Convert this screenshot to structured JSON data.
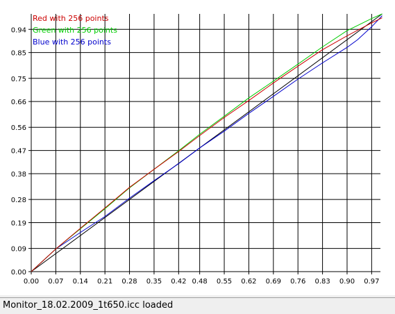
{
  "chart_data": {
    "type": "line",
    "xlim": [
      0,
      0.995
    ],
    "ylim": [
      0,
      1.0
    ],
    "x_ticks": [
      "0.00",
      "0.07",
      "0.14",
      "0.21",
      "0.28",
      "0.35",
      "0.42",
      "0.48",
      "0.55",
      "0.62",
      "0.69",
      "0.76",
      "0.83",
      "0.90",
      "0.97"
    ],
    "y_ticks": [
      "0.00",
      "0.09",
      "0.19",
      "0.28",
      "0.38",
      "0.47",
      "0.56",
      "0.66",
      "0.75",
      "0.85",
      "0.94"
    ],
    "grid": true,
    "legend_position": "top-left",
    "series": [
      {
        "name": "Red with 256 points",
        "color": "#cc0000",
        "x": [
          0,
          0.07,
          0.14,
          0.21,
          0.28,
          0.35,
          0.42,
          0.48,
          0.55,
          0.62,
          0.69,
          0.76,
          0.83,
          0.9,
          0.97,
          1.0
        ],
        "y": [
          0,
          0.088,
          0.168,
          0.247,
          0.327,
          0.397,
          0.466,
          0.528,
          0.598,
          0.664,
          0.732,
          0.797,
          0.861,
          0.915,
          0.965,
          0.985
        ]
      },
      {
        "name": "Green with 256 points",
        "color": "#00cc00",
        "x": [
          0,
          0.07,
          0.14,
          0.21,
          0.28,
          0.35,
          0.42,
          0.48,
          0.55,
          0.62,
          0.69,
          0.76,
          0.83,
          0.9,
          0.97,
          1.0
        ],
        "y": [
          0,
          0.088,
          0.166,
          0.244,
          0.325,
          0.397,
          0.469,
          0.533,
          0.603,
          0.674,
          0.739,
          0.805,
          0.872,
          0.935,
          0.982,
          1.0
        ]
      },
      {
        "name": "Blue with 256 points",
        "color": "#0000cc",
        "x": [
          0,
          0.07,
          0.14,
          0.21,
          0.28,
          0.35,
          0.42,
          0.48,
          0.55,
          0.62,
          0.69,
          0.76,
          0.83,
          0.9,
          0.93,
          0.97,
          1.0
        ],
        "y": [
          0,
          0.088,
          0.152,
          0.214,
          0.285,
          0.353,
          0.419,
          0.48,
          0.545,
          0.614,
          0.68,
          0.747,
          0.81,
          0.87,
          0.9,
          0.95,
          0.993
        ]
      },
      {
        "name": "",
        "color": "#000000",
        "x": [
          0,
          1.0
        ],
        "y": [
          0,
          1.0
        ]
      }
    ]
  },
  "status": {
    "text": "Monitor_18.02.2009_1t650.icc loaded"
  }
}
